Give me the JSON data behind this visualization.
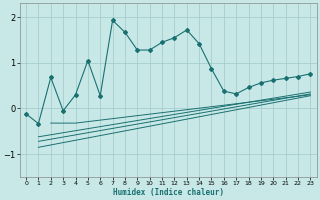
{
  "xlabel": "Humidex (Indice chaleur)",
  "bg_color": "#c8e8e8",
  "line_color": "#1a7070",
  "grid_color": "#a0c8c8",
  "xlim": [
    -0.5,
    23.5
  ],
  "ylim": [
    -1.5,
    2.3
  ],
  "yticks": [
    -1,
    0,
    1,
    2
  ],
  "xticks": [
    0,
    1,
    2,
    3,
    4,
    5,
    6,
    7,
    8,
    9,
    10,
    11,
    12,
    13,
    14,
    15,
    16,
    17,
    18,
    19,
    20,
    21,
    22,
    23
  ],
  "main_x": [
    0,
    1,
    2,
    3,
    4,
    5,
    6,
    7,
    8,
    9,
    10,
    11,
    12,
    13,
    14,
    15,
    16,
    17,
    18,
    19,
    20,
    21,
    22,
    23
  ],
  "main_y": [
    -0.12,
    -0.33,
    0.68,
    -0.05,
    0.3,
    1.05,
    0.28,
    1.93,
    1.67,
    1.28,
    1.28,
    1.45,
    1.55,
    1.72,
    1.42,
    0.87,
    0.38,
    0.32,
    0.46,
    0.56,
    0.62,
    0.66,
    0.7,
    0.76
  ],
  "trend1_x": [
    1,
    23
  ],
  "trend1_y": [
    -0.85,
    0.28
  ],
  "trend2_x": [
    1,
    23
  ],
  "trend2_y": [
    -0.72,
    0.32
  ],
  "trend3_x": [
    1,
    23
  ],
  "trend3_y": [
    -0.62,
    0.36
  ],
  "trend4_x": [
    2,
    4,
    23
  ],
  "trend4_y": [
    -0.32,
    -0.32,
    0.3
  ]
}
